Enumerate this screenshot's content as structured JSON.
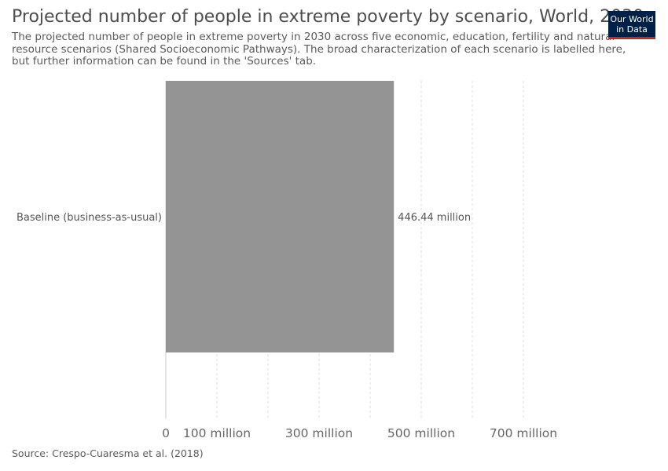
{
  "header": {
    "title": "Projected number of people in extreme poverty by scenario, World, 2030",
    "subtitle": "The projected number of people in extreme poverty in 2030 across five economic, education, fertility and natural resource scenarios (Shared Socioeconomic Pathways). The broad characterization of each scenario is labelled here, but further information can be found in the 'Sources' tab.",
    "logo_line1": "Our World",
    "logo_line2": "in Data"
  },
  "footer": {
    "source": "Source: Crespo-Cuaresma et al. (2018)"
  },
  "colors": {
    "bar": "#939493",
    "logo_bg": "#002147",
    "logo_accent": "#ce261e"
  },
  "chart_data": {
    "type": "bar",
    "orientation": "horizontal",
    "categories": [
      "Baseline (business-as-usual)"
    ],
    "values": [
      446.44
    ],
    "value_labels": [
      "446.44 million"
    ],
    "x_ticks": [
      0,
      100,
      300,
      500,
      700
    ],
    "x_tick_labels": [
      "0",
      "100 million",
      "300 million",
      "500 million",
      "700 million"
    ],
    "x_gridlines": [
      100,
      200,
      300,
      400,
      500,
      600,
      700
    ],
    "xlim": [
      0,
      700
    ],
    "grid": "vertical dashed"
  }
}
